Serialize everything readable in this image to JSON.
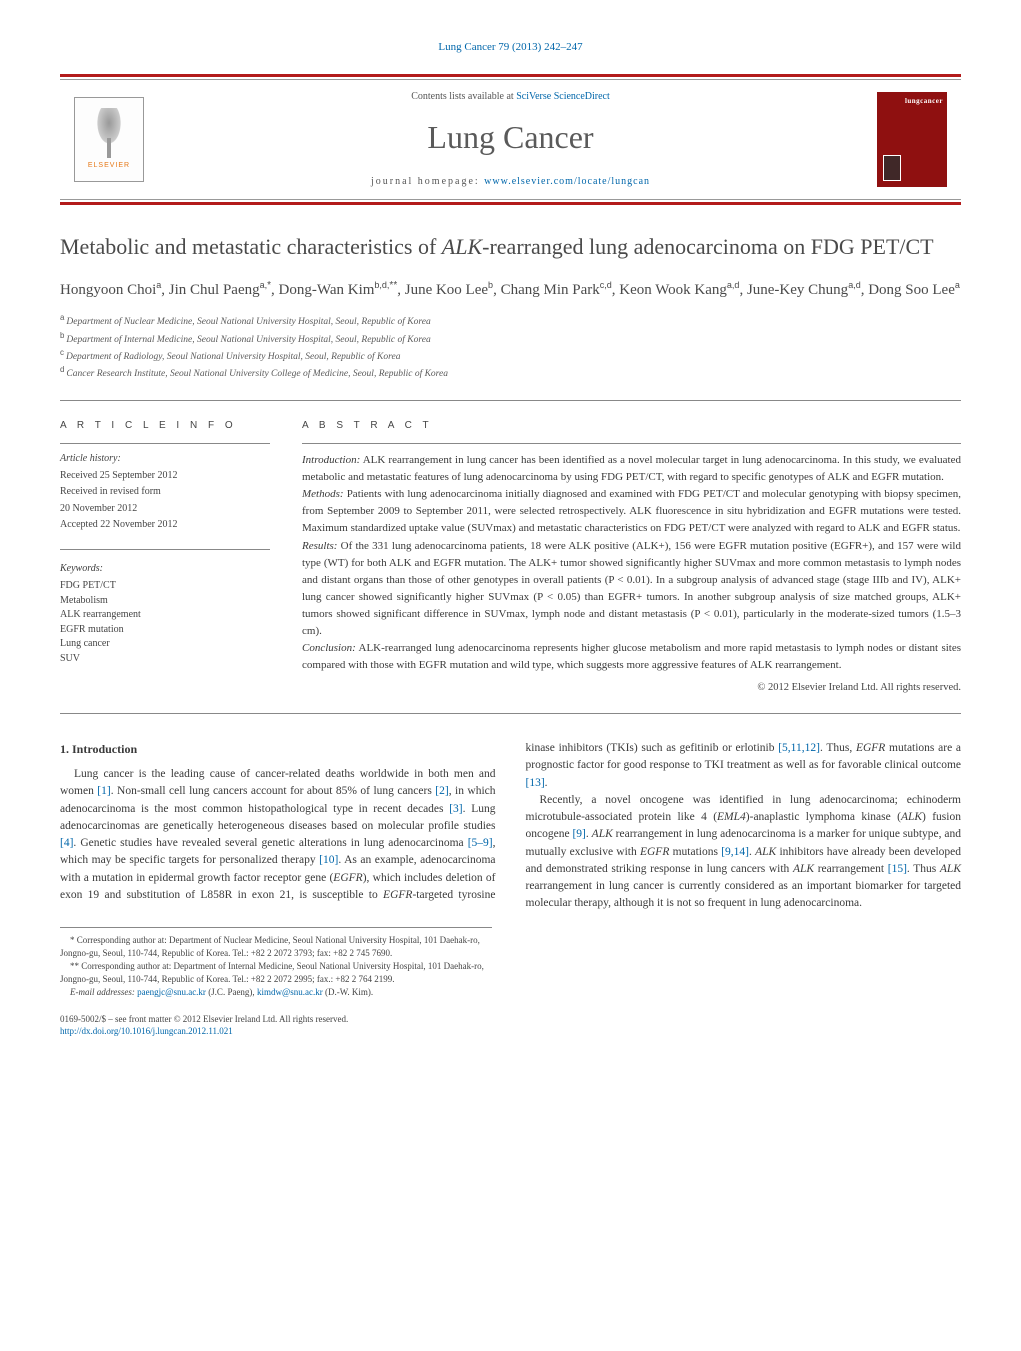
{
  "page_header": "Lung Cancer 79 (2013) 242–247",
  "masthead": {
    "contents_prefix": "Contents lists available at ",
    "contents_link": "SciVerse ScienceDirect",
    "journal_name": "Lung Cancer",
    "homepage_prefix": "journal homepage: ",
    "homepage_url": "www.elsevier.com/locate/lungcan",
    "publisher_name": "ELSEVIER",
    "cover_text": "lungcancer"
  },
  "title_part1": "Metabolic and metastatic characteristics of ",
  "title_italic": "ALK",
  "title_part2": "-rearranged lung adenocarcinoma on FDG PET/CT",
  "authors_html": "Hongyoon Choi",
  "authors": [
    {
      "name": "Hongyoon Choi",
      "aff": "a"
    },
    {
      "name": "Jin Chul Paeng",
      "aff": "a,*"
    },
    {
      "name": "Dong-Wan Kim",
      "aff": "b,d,**"
    },
    {
      "name": "June Koo Lee",
      "aff": "b"
    },
    {
      "name": "Chang Min Park",
      "aff": "c,d"
    },
    {
      "name": "Keon Wook Kang",
      "aff": "a,d"
    },
    {
      "name": "June-Key Chung",
      "aff": "a,d"
    },
    {
      "name": "Dong Soo Lee",
      "aff": "a"
    }
  ],
  "affiliations": [
    {
      "sup": "a",
      "text": "Department of Nuclear Medicine, Seoul National University Hospital, Seoul, Republic of Korea"
    },
    {
      "sup": "b",
      "text": "Department of Internal Medicine, Seoul National University Hospital, Seoul, Republic of Korea"
    },
    {
      "sup": "c",
      "text": "Department of Radiology, Seoul National University Hospital, Seoul, Republic of Korea"
    },
    {
      "sup": "d",
      "text": "Cancer Research Institute, Seoul National University College of Medicine, Seoul, Republic of Korea"
    }
  ],
  "article_info_label": "A R T I C L E   I N F O",
  "abstract_label": "A B S T R A C T",
  "history_label": "Article history:",
  "history": [
    "Received 25 September 2012",
    "Received in revised form",
    "20 November 2012",
    "Accepted 22 November 2012"
  ],
  "keywords_label": "Keywords:",
  "keywords": [
    "FDG PET/CT",
    "Metabolism",
    "ALK rearrangement",
    "EGFR mutation",
    "Lung cancer",
    "SUV"
  ],
  "abstract": {
    "intro_label": "Introduction:",
    "intro": " ALK rearrangement in lung cancer has been identified as a novel molecular target in lung adenocarcinoma. In this study, we evaluated metabolic and metastatic features of lung adenocarcinoma by using FDG PET/CT, with regard to specific genotypes of ALK and EGFR mutation.",
    "methods_label": "Methods:",
    "methods": " Patients with lung adenocarcinoma initially diagnosed and examined with FDG PET/CT and molecular genotyping with biopsy specimen, from September 2009 to September 2011, were selected retrospectively. ALK fluorescence in situ hybridization and EGFR mutations were tested. Maximum standardized uptake value (SUVmax) and metastatic characteristics on FDG PET/CT were analyzed with regard to ALK and EGFR status.",
    "results_label": "Results:",
    "results": " Of the 331 lung adenocarcinoma patients, 18 were ALK positive (ALK+), 156 were EGFR mutation positive (EGFR+), and 157 were wild type (WT) for both ALK and EGFR mutation. The ALK+ tumor showed significantly higher SUVmax and more common metastasis to lymph nodes and distant organs than those of other genotypes in overall patients (P < 0.01). In a subgroup analysis of advanced stage (stage IIIb and IV), ALK+ lung cancer showed significantly higher SUVmax (P < 0.05) than EGFR+ tumors. In another subgroup analysis of size matched groups, ALK+ tumors showed significant difference in SUVmax, lymph node and distant metastasis (P < 0.01), particularly in the moderate-sized tumors (1.5–3 cm).",
    "conclusion_label": "Conclusion:",
    "conclusion": " ALK-rearranged lung adenocarcinoma represents higher glucose metabolism and more rapid metastasis to lymph nodes or distant sites compared with those with EGFR mutation and wild type, which suggests more aggressive features of ALK rearrangement."
  },
  "copyright": "© 2012 Elsevier Ireland Ltd. All rights reserved.",
  "intro_heading": "1. Introduction",
  "intro_para1": "Lung cancer is the leading cause of cancer-related deaths worldwide in both men and women [1]. Non-small cell lung cancers account for about 85% of lung cancers [2], in which adenocarcinoma is the most common histopathological type in recent decades [3]. Lung adenocarcinomas are genetically heterogeneous diseases based on molecular profile studies [4]. Genetic studies have revealed several genetic alterations in lung adenocarcinoma",
  "intro_para1b": "[5–9], which may be specific targets for personalized therapy [10]. As an example, adenocarcinoma with a mutation in epidermal growth factor receptor gene (EGFR), which includes deletion of exon 19 and substitution of L858R in exon 21, is susceptible to EGFR-targeted tyrosine kinase inhibitors (TKIs) such as gefitinib or erlotinib [5,11,12]. Thus, EGFR mutations are a prognostic factor for good response to TKI treatment as well as for favorable clinical outcome [13].",
  "intro_para2": "Recently, a novel oncogene was identified in lung adenocarcinoma; echinoderm microtubule-associated protein like 4 (EML4)-anaplastic lymphoma kinase (ALK) fusion oncogene [9]. ALK rearrangement in lung adenocarcinoma is a marker for unique subtype, and mutually exclusive with EGFR mutations [9,14]. ALK inhibitors have already been developed and demonstrated striking response in lung cancers with ALK rearrangement [15]. Thus ALK rearrangement in lung cancer is currently considered as an important biomarker for targeted molecular therapy, although it is not so frequent in lung adenocarcinoma.",
  "footnotes": {
    "corr1": "* Corresponding author at: Department of Nuclear Medicine, Seoul National University Hospital, 101 Daehak-ro, Jongno-gu, Seoul, 110-744, Republic of Korea. Tel.: +82 2 2072 3793; fax: +82 2 745 7690.",
    "corr2": "** Corresponding author at: Department of Internal Medicine, Seoul National University Hospital, 101 Daehak-ro, Jongno-gu, Seoul, 110-744, Republic of Korea. Tel.: +82 2 2072 2995; fax.: +82 2 764 2199.",
    "email_label": "E-mail addresses: ",
    "email1": "paengjc@snu.ac.kr",
    "email1_who": " (J.C. Paeng), ",
    "email2": "kimdw@snu.ac.kr",
    "email2_who": " (D.-W. Kim)."
  },
  "doi": {
    "line1": "0169-5002/$ – see front matter © 2012 Elsevier Ireland Ltd. All rights reserved.",
    "line2": "http://dx.doi.org/10.1016/j.lungcan.2012.11.021"
  },
  "refs": {
    "r1": "[1]",
    "r2": "[2]",
    "r3": "[3]",
    "r4": "[4]",
    "r5_9": "[5–9]",
    "r10": "[10]",
    "r5_11_12": "[5,11,12]",
    "r13": "[13]",
    "r9": "[9]",
    "r9_14": "[9,14]",
    "r15": "[15]"
  },
  "colors": {
    "brand_red": "#b31b1b",
    "link_blue": "#0066aa",
    "elsevier_orange": "#e67817",
    "cover_bg": "#8f1010",
    "text": "#3a3a3a"
  }
}
